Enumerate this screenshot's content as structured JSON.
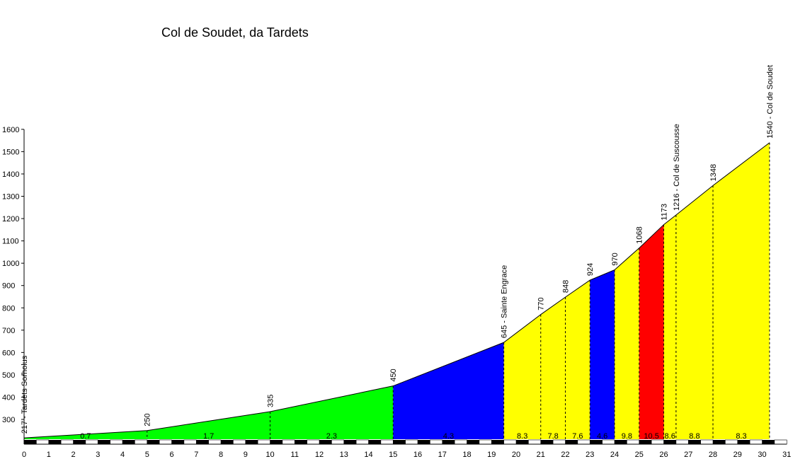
{
  "chart_data": {
    "type": "area",
    "title": "Col de Soudet, da Tardets",
    "xlabel": "",
    "ylabel": "",
    "xlim": [
      0,
      31
    ],
    "ylim": [
      200,
      1600
    ],
    "x_ticks": [
      0,
      1,
      2,
      3,
      4,
      5,
      6,
      7,
      8,
      9,
      10,
      11,
      12,
      13,
      14,
      15,
      16,
      17,
      18,
      19,
      20,
      21,
      22,
      23,
      24,
      25,
      26,
      27,
      28,
      29,
      30,
      31
    ],
    "y_ticks": [
      300,
      400,
      500,
      600,
      700,
      800,
      900,
      1000,
      1100,
      1200,
      1300,
      1400,
      1500,
      1600
    ],
    "profile": [
      {
        "x": 0,
        "y": 217
      },
      {
        "x": 5,
        "y": 250
      },
      {
        "x": 10,
        "y": 335
      },
      {
        "x": 15,
        "y": 450
      },
      {
        "x": 19.5,
        "y": 645
      },
      {
        "x": 21,
        "y": 770
      },
      {
        "x": 22,
        "y": 848
      },
      {
        "x": 23,
        "y": 924
      },
      {
        "x": 24,
        "y": 970
      },
      {
        "x": 25,
        "y": 1068
      },
      {
        "x": 26,
        "y": 1173
      },
      {
        "x": 26.5,
        "y": 1216
      },
      {
        "x": 28,
        "y": 1348
      },
      {
        "x": 30.3,
        "y": 1540
      }
    ],
    "segments": [
      {
        "from": 0,
        "to": 5,
        "gradient": "0.7",
        "color": "#00ff00"
      },
      {
        "from": 5,
        "to": 10,
        "gradient": "1.7",
        "color": "#00ff00"
      },
      {
        "from": 10,
        "to": 15,
        "gradient": "2.3",
        "color": "#00ff00"
      },
      {
        "from": 15,
        "to": 19.5,
        "gradient": "4.3",
        "color": "#0000ff"
      },
      {
        "from": 19.5,
        "to": 21,
        "gradient": "8.3",
        "color": "#ffff00"
      },
      {
        "from": 21,
        "to": 22,
        "gradient": "7.8",
        "color": "#ffff00"
      },
      {
        "from": 22,
        "to": 23,
        "gradient": "7.6",
        "color": "#ffff00"
      },
      {
        "from": 23,
        "to": 24,
        "gradient": "4.6",
        "color": "#0000ff"
      },
      {
        "from": 24,
        "to": 25,
        "gradient": "9.8",
        "color": "#ffff00"
      },
      {
        "from": 25,
        "to": 26,
        "gradient": "10.5",
        "color": "#ff0000"
      },
      {
        "from": 26,
        "to": 26.5,
        "gradient": "8.6",
        "color": "#ffff00"
      },
      {
        "from": 26.5,
        "to": 28,
        "gradient": "8.8",
        "color": "#ffff00"
      },
      {
        "from": 28,
        "to": 30.3,
        "gradient": "8.3",
        "color": "#ffff00"
      }
    ],
    "point_labels": [
      {
        "x": 0,
        "y": 217,
        "text": "217 - Tardets Sorholus"
      },
      {
        "x": 5,
        "y": 250,
        "text": "250"
      },
      {
        "x": 10,
        "y": 335,
        "text": "335"
      },
      {
        "x": 15,
        "y": 450,
        "text": "450"
      },
      {
        "x": 19.5,
        "y": 645,
        "text": "645 - Sainte Engrace"
      },
      {
        "x": 21,
        "y": 770,
        "text": "770"
      },
      {
        "x": 22,
        "y": 848,
        "text": "848"
      },
      {
        "x": 23,
        "y": 924,
        "text": "924"
      },
      {
        "x": 24,
        "y": 970,
        "text": "970"
      },
      {
        "x": 25,
        "y": 1068,
        "text": "1068"
      },
      {
        "x": 26,
        "y": 1173,
        "text": "1173"
      },
      {
        "x": 26.5,
        "y": 1216,
        "text": "1216 - Col de Suscousse"
      },
      {
        "x": 28,
        "y": 1348,
        "text": "1348"
      },
      {
        "x": 30.3,
        "y": 1540,
        "text": "1540 - Col de Soudet"
      }
    ],
    "grid": false,
    "legend": "none"
  }
}
